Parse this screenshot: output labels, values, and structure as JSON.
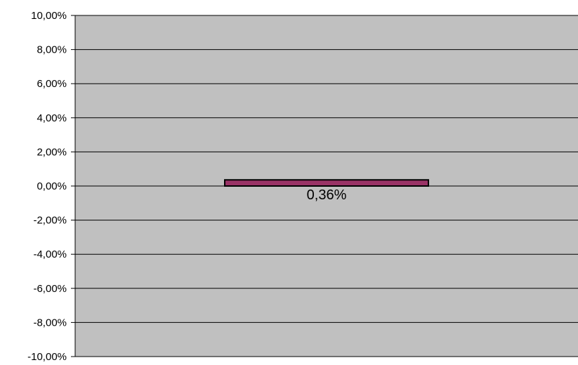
{
  "chart_data": {
    "type": "bar",
    "categories": [
      ""
    ],
    "values": [
      0.36
    ],
    "data_labels": [
      "0,36%"
    ],
    "ylim": [
      -10,
      10
    ],
    "ytick_values": [
      10,
      8,
      6,
      4,
      2,
      0,
      -2,
      -4,
      -6,
      -8,
      -10
    ],
    "ytick_labels": [
      "10,00%",
      "8,00%",
      "6,00%",
      "4,00%",
      "2,00%",
      "0,00%",
      "-2,00%",
      "-4,00%",
      "-6,00%",
      "-8,00%",
      "-10,00%"
    ],
    "grid": true,
    "legend": "none",
    "colors": {
      "plot_background": "#c0c0c0",
      "bar_fill": "#993366",
      "bar_edge": "#000000",
      "gridline": "#000000"
    }
  }
}
